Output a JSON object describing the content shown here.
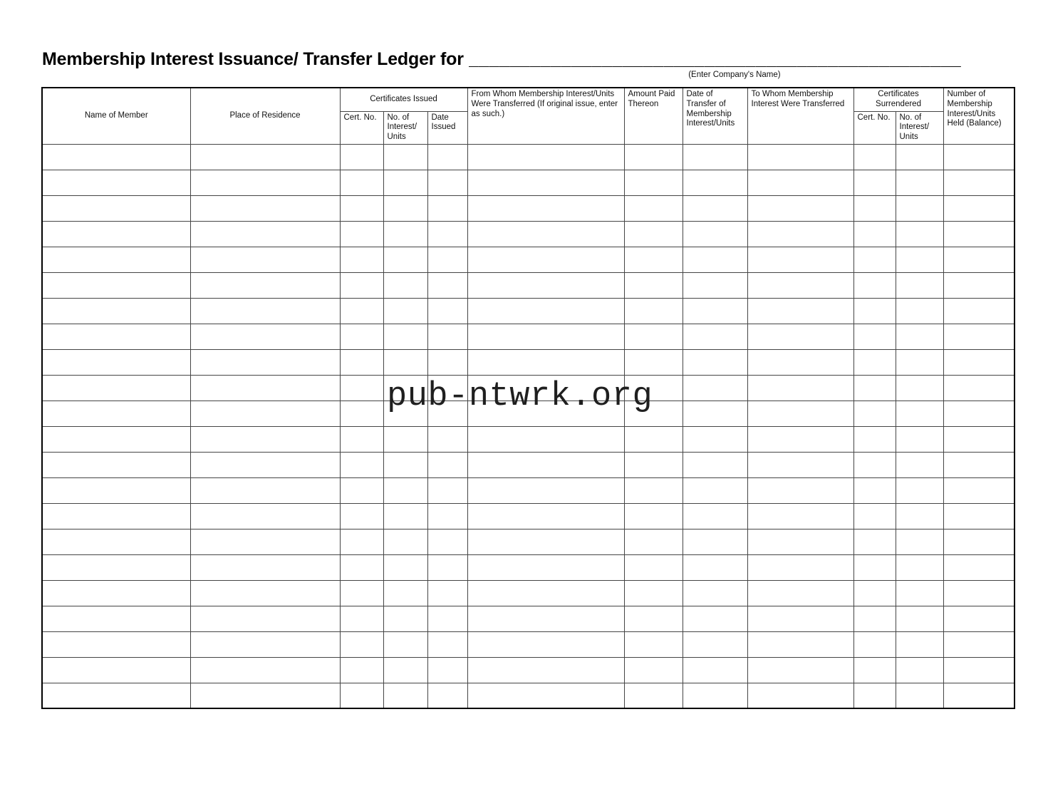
{
  "header": {
    "title": "Membership Interest Issuance/ Transfer Ledger for",
    "blank_line": "________________________________________________",
    "caption": "(Enter Company's Name)"
  },
  "watermark": "pub-ntwrk.org",
  "colors": {
    "ink": "#111111",
    "watermark_ink": "#1f1f1f"
  },
  "table": {
    "group_headers": {
      "certificates_issued": "Certificates Issued",
      "certificates_surrendered": "Certificates Surrendered"
    },
    "column_headers": {
      "name_of_member": "Name of Member",
      "place_of_residence": "Place of Residence",
      "cert_no_issued": "Cert. No.",
      "no_of_interest_units_issued": "No. of Interest/ Units",
      "date_issued": "Date Issued",
      "from_whom": "From Whom Membership Interest/Units Were Transferred (If original issue, enter as such.)",
      "amount_paid": "Amount Paid Thereon",
      "date_of_transfer": "Date of Transfer of Membership Interest/Units",
      "to_whom": "To Whom Membership Interest Were Transferred",
      "cert_no_surrendered": "Cert. No.",
      "no_of_interest_units_surrendered": "No. of Interest/ Units",
      "number_held": "Number of Membership Interest/Units Held (Balance)"
    },
    "blank_rows": 22,
    "cell_value": ""
  }
}
